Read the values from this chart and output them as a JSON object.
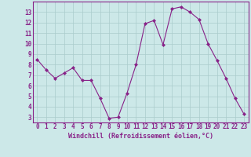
{
  "x": [
    0,
    1,
    2,
    3,
    4,
    5,
    6,
    7,
    8,
    9,
    10,
    11,
    12,
    13,
    14,
    15,
    16,
    17,
    18,
    19,
    20,
    21,
    22,
    23
  ],
  "y": [
    8.5,
    7.5,
    6.7,
    7.2,
    7.7,
    6.5,
    6.5,
    4.8,
    2.9,
    3.0,
    5.3,
    8.0,
    11.9,
    12.2,
    9.9,
    13.3,
    13.5,
    13.0,
    12.3,
    10.0,
    8.4,
    6.7,
    4.8,
    3.3
  ],
  "line_color": "#882288",
  "marker": "D",
  "marker_size": 2.0,
  "bg_color": "#cce8e8",
  "grid_color": "#aacccc",
  "xlabel": "Windchill (Refroidissement éolien,°C)",
  "xlabel_color": "#882288",
  "ylabel_ticks": [
    3,
    4,
    5,
    6,
    7,
    8,
    9,
    10,
    11,
    12,
    13
  ],
  "xtick_labels": [
    "0",
    "1",
    "2",
    "3",
    "4",
    "5",
    "6",
    "7",
    "8",
    "9",
    "10",
    "11",
    "12",
    "13",
    "14",
    "15",
    "16",
    "17",
    "18",
    "19",
    "20",
    "21",
    "22",
    "23"
  ],
  "ylim": [
    2.5,
    14.0
  ],
  "xlim": [
    -0.5,
    23.5
  ],
  "tick_color": "#882288",
  "spine_color": "#882288",
  "tick_fontsize": 5.5,
  "xlabel_fontsize": 6.0
}
